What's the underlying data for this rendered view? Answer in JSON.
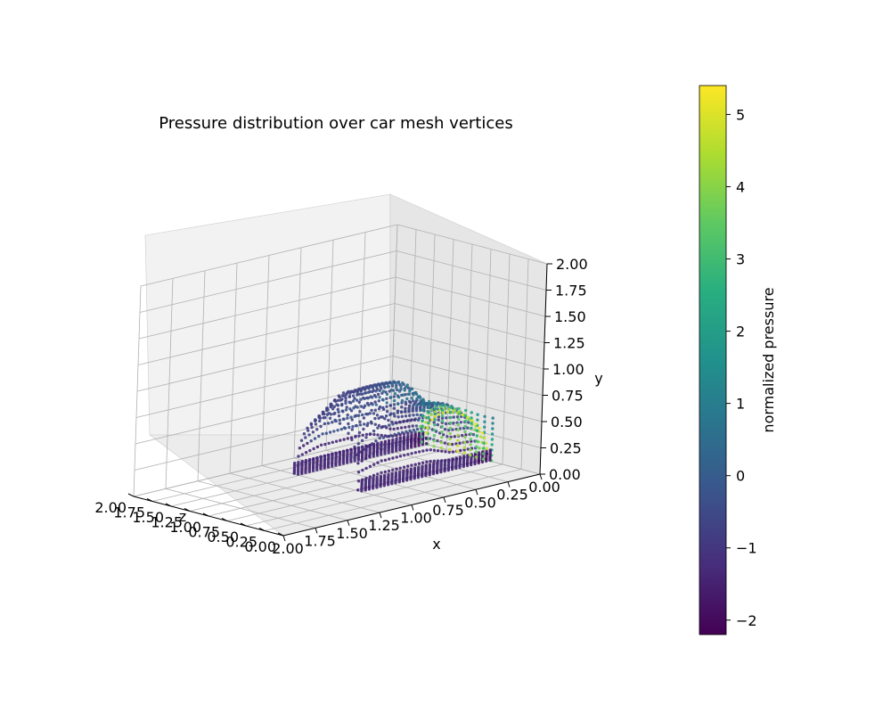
{
  "chart_data": {
    "type": "scatter",
    "title": "Pressure distribution over car mesh vertices",
    "projection": "3d",
    "xlabel": "x",
    "ylabel": "y",
    "zlabel": "z",
    "xlim": [
      0,
      2
    ],
    "ylim": [
      0,
      2
    ],
    "zlim": [
      0,
      2
    ],
    "xticks": [
      "0.00",
      "0.25",
      "0.50",
      "0.75",
      "1.00",
      "1.25",
      "1.50",
      "1.75",
      "2.00"
    ],
    "yticks": [
      "0.00",
      "0.25",
      "0.50",
      "0.75",
      "1.00",
      "1.25",
      "1.50",
      "1.75",
      "2.00"
    ],
    "zticks": [
      "0.00",
      "0.25",
      "0.50",
      "0.75",
      "1.00",
      "1.25",
      "1.50",
      "1.75",
      "2.00"
    ],
    "grid": true,
    "colormap": "viridis",
    "color_range": [
      -2.2,
      5.4
    ],
    "colorbar_label": "normalized pressure",
    "colorbar_ticks": [
      "−2",
      "−1",
      "0",
      "1",
      "2",
      "3",
      "4",
      "5"
    ],
    "colorbar_tick_values": [
      -2,
      -1,
      0,
      1,
      2,
      3,
      4,
      5
    ],
    "car_extent": {
      "x_range": [
        0.07,
        1.07
      ],
      "y_range": [
        0.05,
        0.86
      ],
      "z_range": [
        0.53,
        1.47
      ]
    },
    "pressure_summary": {
      "front_stagnation_max": 5.2,
      "body_typical": -0.5,
      "underbody_min": -2.0
    }
  }
}
